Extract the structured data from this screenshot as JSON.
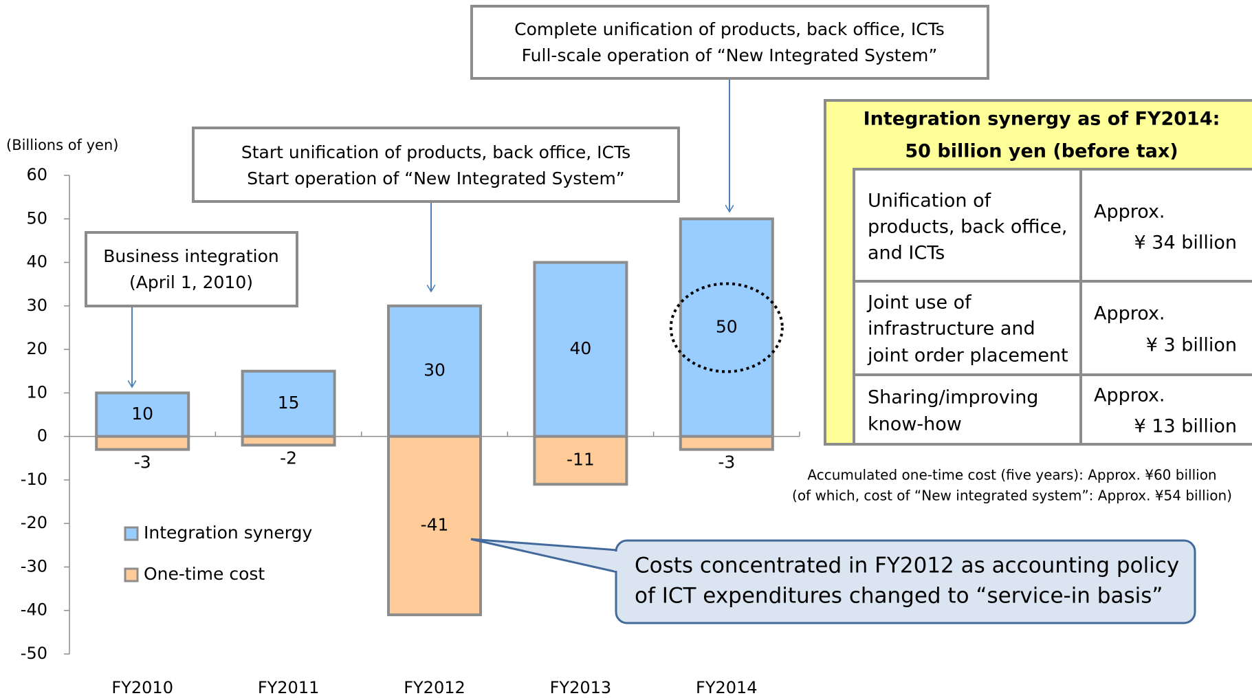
{
  "chart_data": {
    "type": "bar",
    "y_axis_label": "(Billions of yen)",
    "categories": [
      "FY2010",
      "FY2011",
      "FY2012",
      "FY2013",
      "FY2014"
    ],
    "series": [
      {
        "name": "Integration synergy",
        "color": "#99ccff",
        "values": [
          10,
          15,
          30,
          40,
          50
        ]
      },
      {
        "name": "One-time cost",
        "color": "#ffcc99",
        "values": [
          -3,
          -2,
          -41,
          -11,
          -3
        ]
      }
    ],
    "ylim": [
      -50,
      60
    ],
    "yticks": [
      -50,
      -40,
      -30,
      -20,
      -10,
      0,
      10,
      20,
      30,
      40,
      50,
      60
    ],
    "grid": false,
    "legend": "lower left",
    "annotations": [
      [
        "Business integration",
        "(April 1, 2010)"
      ],
      [
        "Start unification of products, back office, ICTs",
        "Start operation of “New Integrated System”"
      ],
      [
        "Complete unification of products, back office, ICTs",
        "Full-scale operation of “New Integrated System”"
      ],
      [
        "Costs concentrated in FY2012 as accounting policy",
        "of ICT expenditures changed to “service-in basis”"
      ]
    ]
  },
  "synergy_table": {
    "title": [
      "Integration synergy as of FY2014:",
      "50 billion yen (before tax)"
    ],
    "rows": [
      {
        "item": [
          "Unification of",
          "products, back office,",
          "and ICTs"
        ],
        "approx": "Approx.",
        "amount": "¥ 34 billion"
      },
      {
        "item": [
          "Joint use of",
          "infrastructure and",
          "joint order placement"
        ],
        "approx": "Approx.",
        "amount": "¥ 3 billion"
      },
      {
        "item": [
          "Sharing/improving",
          "know-how"
        ],
        "approx": "Approx.",
        "amount": "¥ 13 billion"
      }
    ]
  },
  "notes": [
    "Accumulated one-time cost (five years): Approx. ¥60 billion",
    "(of which, cost of “New integrated system”: Approx. ¥54 billion)"
  ]
}
